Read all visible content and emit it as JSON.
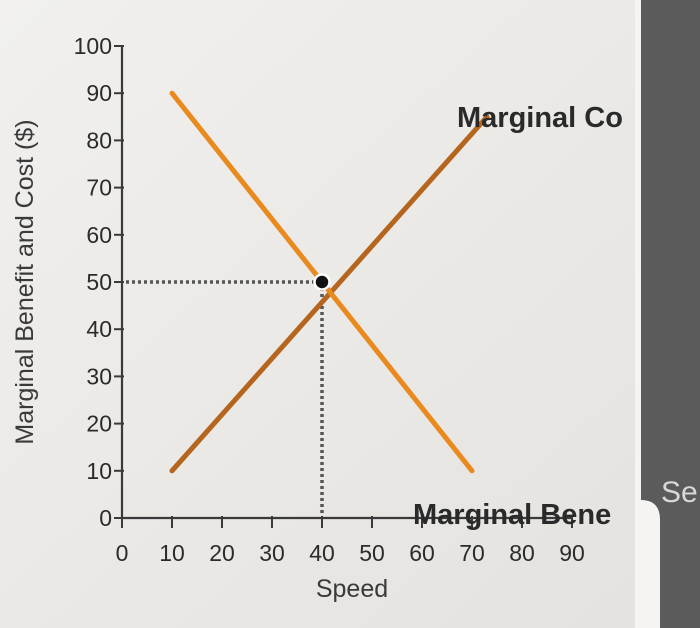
{
  "chart_data": {
    "type": "line",
    "xlabel": "Speed",
    "ylabel": "Marginal Benefit and Cost ($)",
    "x_ticks": [
      0,
      10,
      20,
      30,
      40,
      50,
      60,
      70,
      80,
      90
    ],
    "y_ticks": [
      0,
      10,
      20,
      30,
      40,
      50,
      60,
      70,
      80,
      90,
      100
    ],
    "xlim": [
      0,
      90
    ],
    "ylim": [
      0,
      100
    ],
    "grid": false,
    "series": [
      {
        "name": "Marginal Co",
        "color": "#b5651d",
        "points": [
          [
            10,
            10
          ],
          [
            73,
            85
          ]
        ]
      },
      {
        "name": "Marginal Bene",
        "color": "#e98a1f",
        "points": [
          [
            10,
            90
          ],
          [
            70,
            10
          ]
        ]
      }
    ],
    "equilibrium": {
      "x": 40,
      "y": 50
    }
  },
  "overlay": {
    "side_text": "Se"
  }
}
